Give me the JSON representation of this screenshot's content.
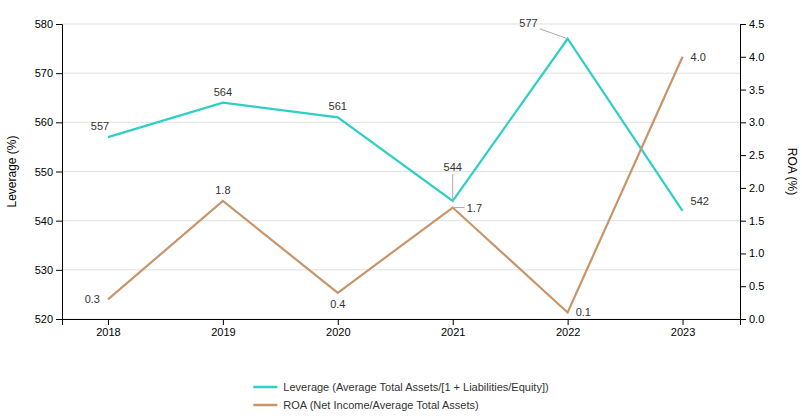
{
  "chart_data": {
    "type": "line",
    "x": [
      2018,
      2019,
      2020,
      2021,
      2022,
      2023
    ],
    "xlim": [
      2017.6,
      2023.5
    ],
    "xticks": [
      2018,
      2019,
      2020,
      2021,
      2022,
      2023
    ],
    "ylim": [
      520,
      580
    ],
    "yticks": [
      520,
      530,
      540,
      550,
      560,
      570,
      580
    ],
    "y2lim": [
      0.0,
      4.5
    ],
    "y2ticks": [
      {
        "value": 0.0,
        "label": "0.0"
      },
      0.5,
      {
        "value": 1.0,
        "label": "1.0"
      },
      1.5,
      {
        "value": 2.0,
        "label": "2.0"
      },
      2.5,
      {
        "value": 3.0,
        "label": "3.0"
      },
      3.5,
      {
        "value": 4.0,
        "label": "4.0"
      },
      4.5
    ],
    "ylabel": "Leverage (%)",
    "y2label": "ROA (%)",
    "grid": true,
    "legend": "bottom",
    "data_labels": true,
    "series": [
      {
        "name": "Leverage (Average Total Assets/[1 + Liabilities/Equity])",
        "color": "#2ecfc4",
        "values": [
          557,
          564,
          561,
          544,
          577,
          542
        ]
      },
      {
        "name": "ROA (Net Income/Average Total Assets)",
        "color": "#c8956a",
        "axis": "y2",
        "values": [
          0.3,
          1.8,
          0.4,
          1.7,
          0.1,
          4.0
        ],
        "value_labels": [
          "0.3",
          "1.8",
          "0.4",
          "1.7",
          "0.1",
          "4.0"
        ]
      }
    ]
  }
}
